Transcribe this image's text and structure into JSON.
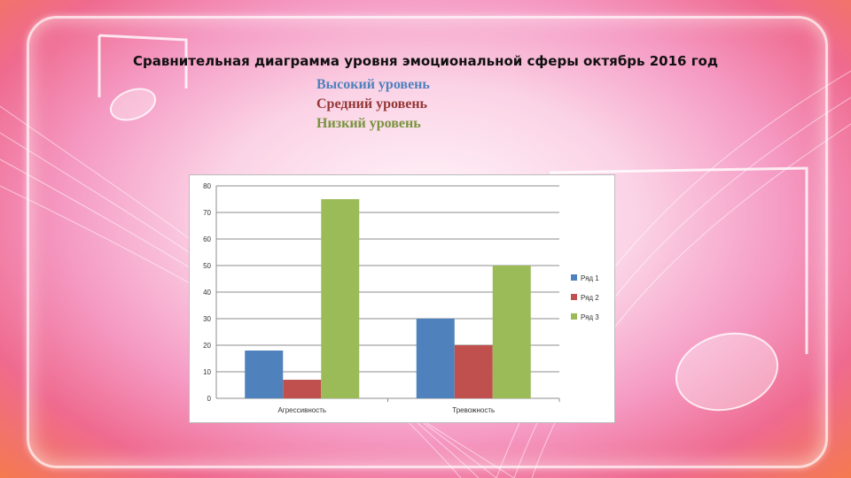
{
  "slide": {
    "title": "Сравнительная диаграмма уровня эмоциональной сферы октябрь  2016 год",
    "levels": [
      {
        "label": "Высокий уровень",
        "color": "#4f81bd"
      },
      {
        "label": "Средний уровень",
        "color": "#953735"
      },
      {
        "label": "Низкий уровень",
        "color": "#77933c"
      }
    ]
  },
  "chart_data": {
    "type": "bar",
    "categories": [
      "Агрессивность",
      "Тревожность"
    ],
    "series": [
      {
        "name": "Ряд 1",
        "values": [
          18,
          30
        ],
        "color": "#4f81bd"
      },
      {
        "name": "Ряд 2",
        "values": [
          7,
          20
        ],
        "color": "#c0504d"
      },
      {
        "name": "Ряд 3",
        "values": [
          75,
          50
        ],
        "color": "#9bbb59"
      }
    ],
    "ylim": [
      0,
      80
    ],
    "yticks": [
      0,
      10,
      20,
      30,
      40,
      50,
      60,
      70,
      80
    ],
    "grid": true,
    "legend": "right"
  }
}
